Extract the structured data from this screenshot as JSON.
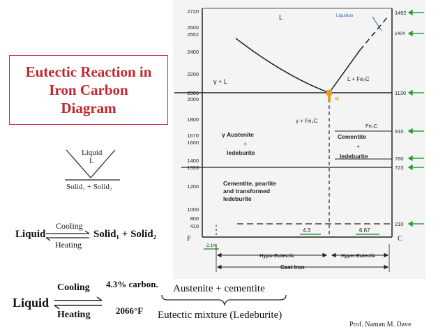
{
  "title_lines": [
    "Eutectic Reaction in",
    "Iron Carbon",
    "Diagram"
  ],
  "credit": "Prof. Naman M. Dave",
  "small_diagram": {
    "top": "Liquid",
    "top_sub": "L",
    "bottom": "Solid₁ + Solid₂"
  },
  "reaction": {
    "liquid": "Liquid",
    "cooling": "Cooling",
    "heating": "Heating",
    "products": "Solid₁ + Solid₂"
  },
  "bottom_eq": {
    "liquid": "Liquid",
    "cooling": "Cooling",
    "heating": "Heating",
    "carbon": "4.3% carbon.",
    "temp": "2066°F",
    "products": "Austenite + cementite",
    "mixture": "Eutectic mixture (Ledeburite)"
  },
  "phase_diagram": {
    "left_ticks": [
      "2720",
      "2600",
      "2552",
      "2400",
      "2200",
      "2066",
      "2000",
      "1800",
      "1670",
      "1600",
      "1400",
      "1333",
      "1200",
      "1000",
      "800",
      "410"
    ],
    "right_ticks": [
      "1492",
      "1404",
      "1130",
      "910",
      "760",
      "723",
      "210"
    ],
    "regions": {
      "L": "L",
      "liquidus": "Liquidus",
      "gamma_L": "γ + L",
      "L_Fe3C": "L + Fe₃C",
      "gamma_Fe3C": "γ + Fe₃C",
      "Fe3C": "Fe₃C",
      "austenite": "γ Austenite",
      "plus1": "+",
      "ledeburite1": "ledeburite",
      "cementite": "Cementite",
      "plus2": "+",
      "ledeburite2": "ledeburite",
      "cpt1": "Cementite, pearlite",
      "cpt2": "and transformed",
      "cpt3": "ledeburite",
      "eutectic_marker": "III"
    },
    "bottom_labels": {
      "F": "F",
      "C": "C",
      "c43": "4.3",
      "c667": "6.67",
      "c21": "2.1%",
      "hypo": "Hypo-Eutectic",
      "hyper": "Hyper-Eutectic",
      "cast_iron": "Cast Iron"
    }
  },
  "colors": {
    "title": "#c0282e",
    "border": "#c8324a",
    "arrows": "#2e9b3a",
    "liquidus": "#2b58b8",
    "eutectic": "#e6a21c"
  }
}
